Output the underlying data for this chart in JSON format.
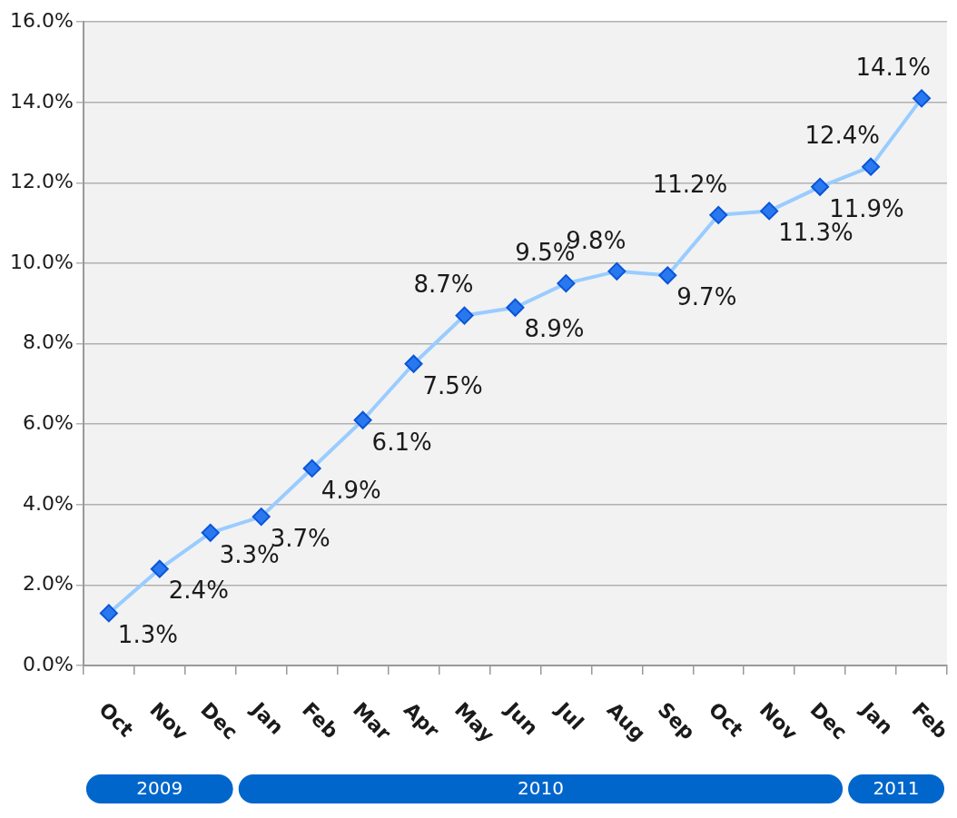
{
  "chart_data": {
    "type": "line",
    "categories": [
      "Oct",
      "Nov",
      "Dec",
      "Jan",
      "Feb",
      "Mar",
      "Apr",
      "May",
      "Jun",
      "Jul",
      "Aug",
      "Sep",
      "Oct",
      "Nov",
      "Dec",
      "Jan",
      "Feb"
    ],
    "series": [
      {
        "color": "#99ccff",
        "values": [
          1.3,
          2.4,
          3.3,
          3.7,
          4.9,
          6.1,
          7.5,
          8.7,
          8.9,
          9.5,
          9.8,
          9.7,
          11.2,
          11.3,
          11.9,
          12.4,
          14.1
        ],
        "value_labels": [
          "1.3%",
          "2.4%",
          "3.3%",
          "3.7%",
          "4.9%",
          "6.1%",
          "7.5%",
          "8.7%",
          "8.9%",
          "9.5%",
          "9.8%",
          "9.7%",
          "11.2%",
          "11.3%",
          "11.9%",
          "12.4%",
          "14.1%"
        ]
      }
    ],
    "ylim": [
      0,
      16
    ],
    "yticks": [
      {
        "value": 0,
        "label": "0.0%"
      },
      {
        "value": 2,
        "label": "2.0%"
      },
      {
        "value": 4,
        "label": "4.0%"
      },
      {
        "value": 6,
        "label": "6.0%"
      },
      {
        "value": 8,
        "label": "8.0%"
      },
      {
        "value": 10,
        "label": "10.0%"
      },
      {
        "value": 12,
        "label": "12.0%"
      },
      {
        "value": 14,
        "label": "14.0%"
      },
      {
        "value": 16,
        "label": "16.0%"
      }
    ],
    "annotations": [
      "2009",
      "2010",
      "2011"
    ],
    "grid": "y",
    "marker": "diamond",
    "line_style": "solid",
    "legend": false
  }
}
